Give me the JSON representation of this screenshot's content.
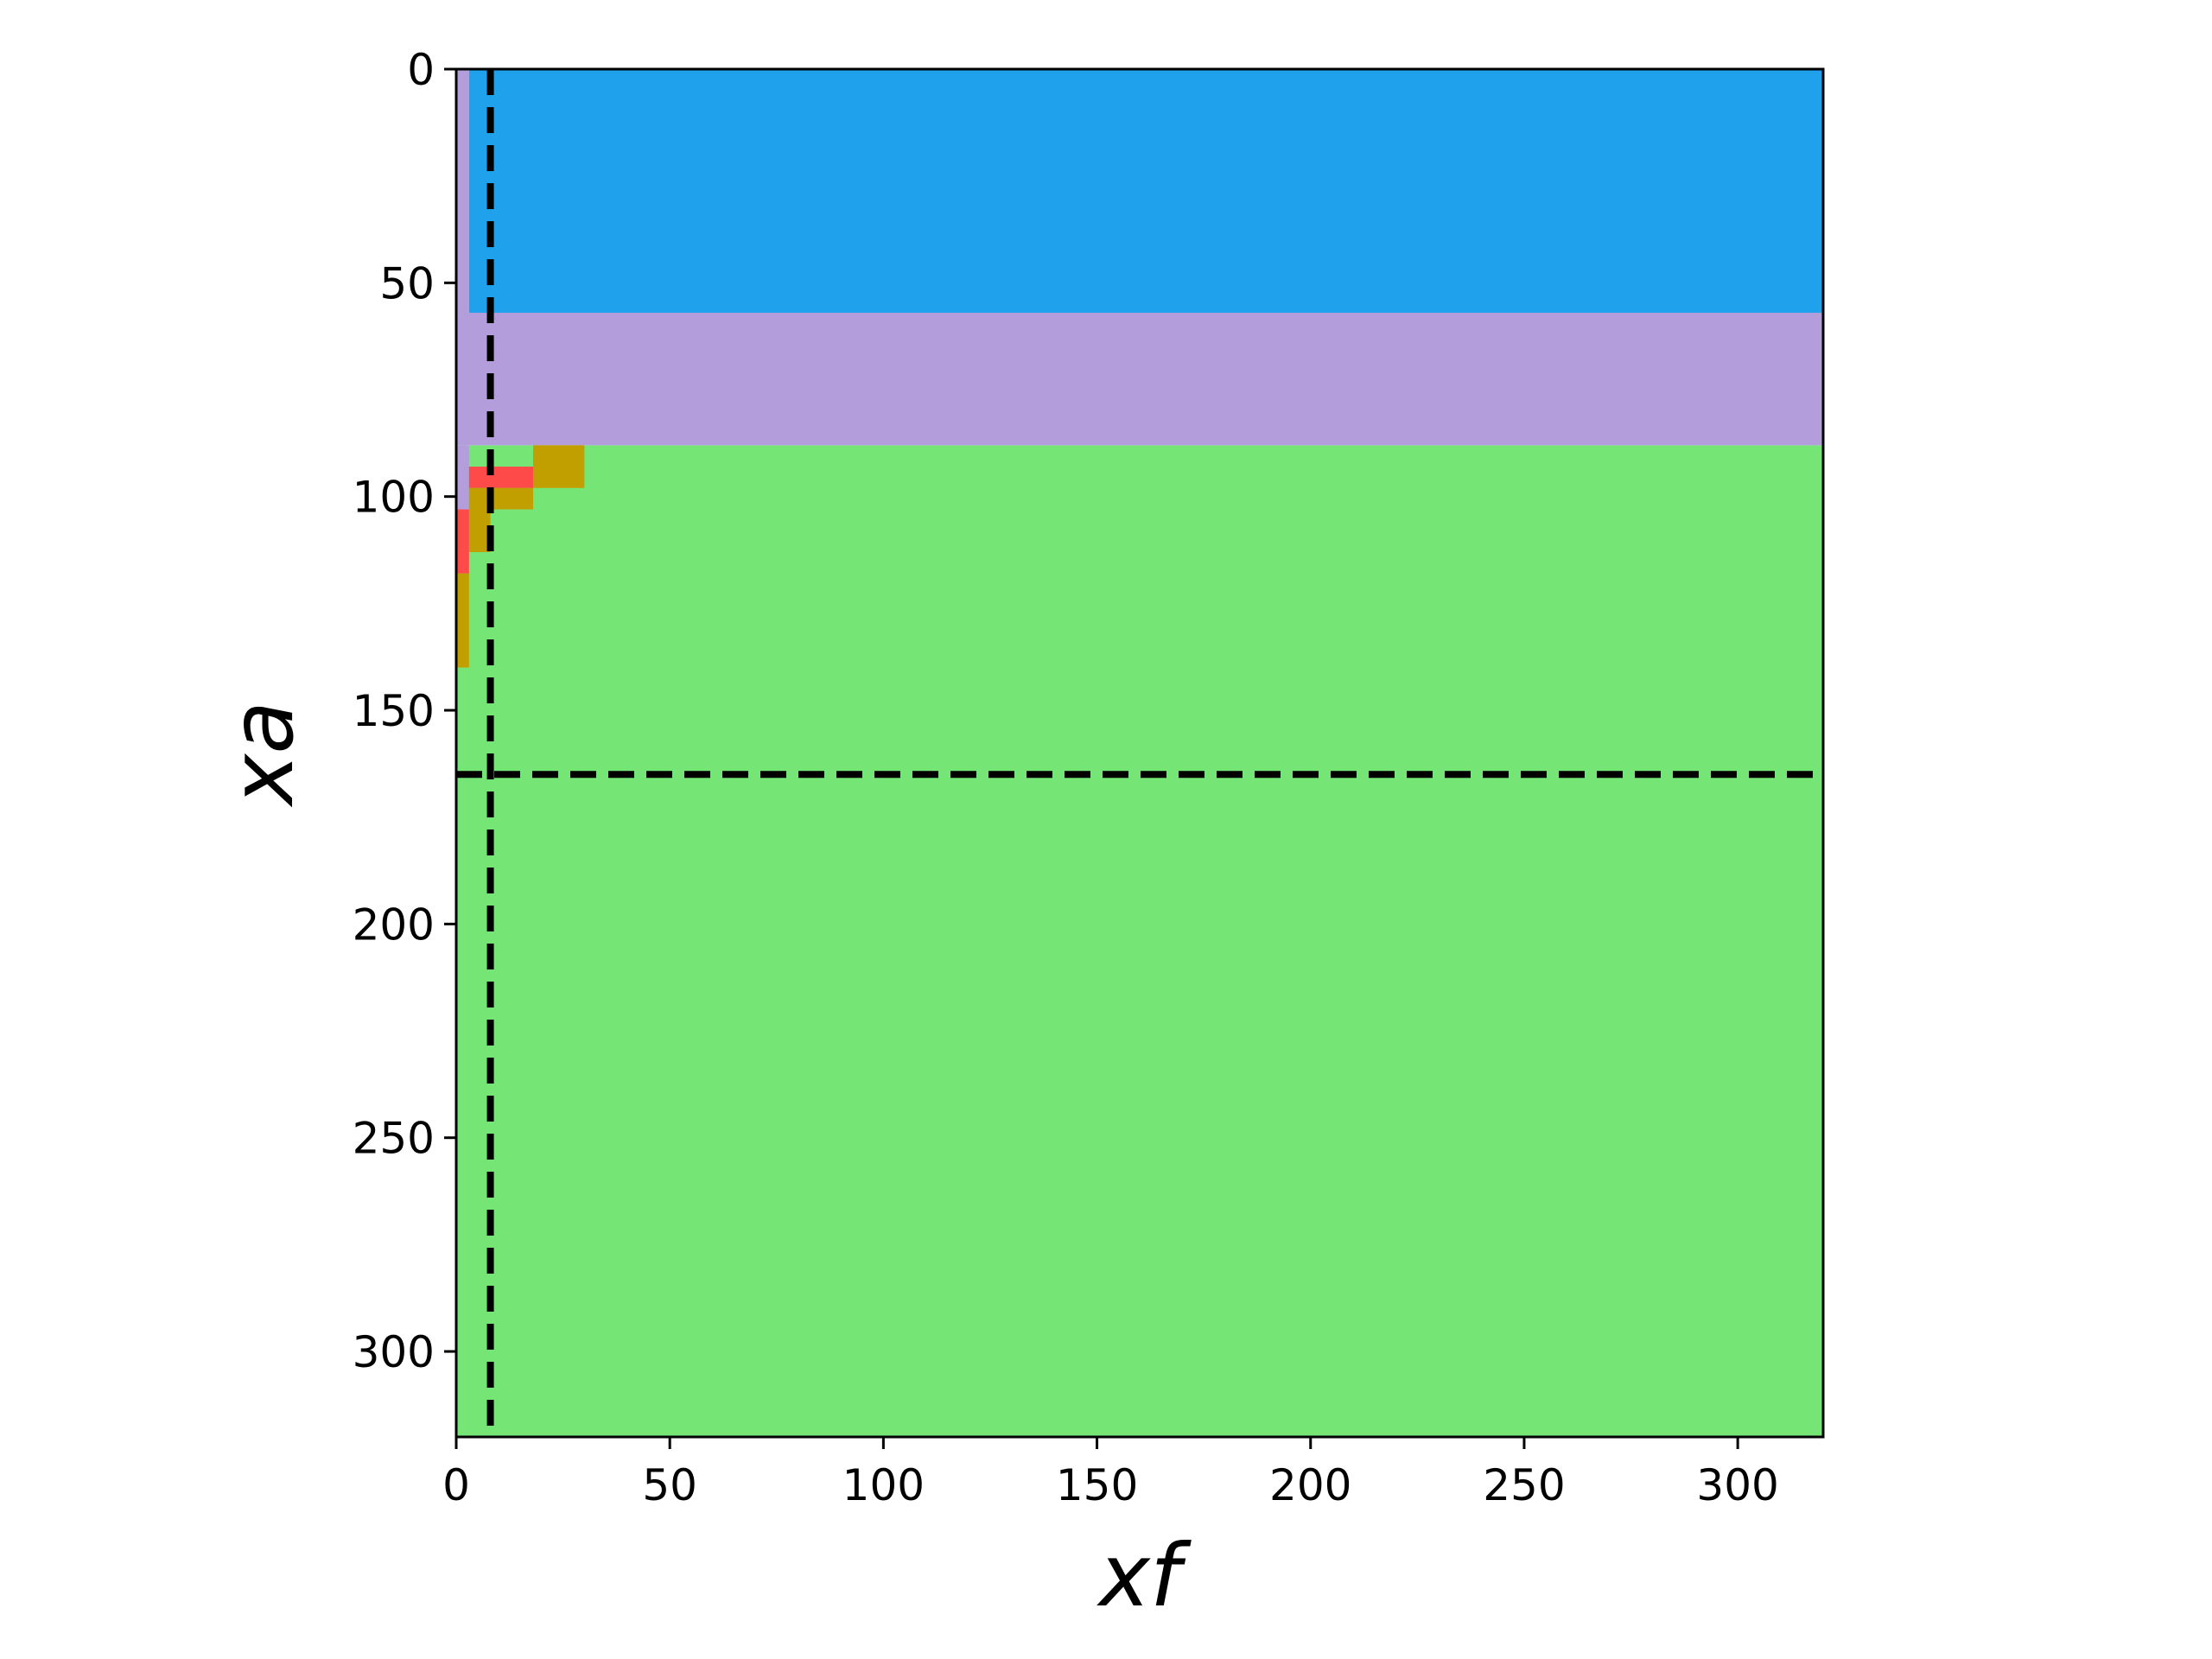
{
  "chart_data": {
    "type": "heatmap",
    "title": "",
    "xlabel": "xf",
    "ylabel": "xa",
    "xlim": [
      0,
      320
    ],
    "ylim": [
      320,
      0
    ],
    "y_axis_inverted": true,
    "grid": false,
    "legend": "none",
    "x_ticks": [
      "0",
      "50",
      "100",
      "150",
      "200",
      "250",
      "300"
    ],
    "y_ticks": [
      "0",
      "50",
      "100",
      "150",
      "200",
      "250",
      "300"
    ],
    "colors": {
      "blue": "#1fa1eb",
      "purple": "#b39ddb",
      "green": "#75e675",
      "red": "#ff4a4a",
      "olive": "#c29f00"
    },
    "regions": [
      {
        "color": "green",
        "x": [
          0,
          320
        ],
        "y": [
          88,
          320
        ]
      },
      {
        "color": "purple",
        "x": [
          0,
          320
        ],
        "y": [
          57,
          88
        ]
      },
      {
        "color": "purple",
        "x": [
          0,
          3
        ],
        "y": [
          0,
          57
        ]
      },
      {
        "color": "blue",
        "x": [
          3,
          320
        ],
        "y": [
          0,
          57
        ]
      },
      {
        "color": "purple",
        "x": [
          0,
          3
        ],
        "y": [
          88,
          103
        ]
      },
      {
        "color": "olive",
        "x": [
          18,
          30
        ],
        "y": [
          88,
          98
        ]
      },
      {
        "color": "red",
        "x": [
          3,
          18
        ],
        "y": [
          93,
          98
        ]
      },
      {
        "color": "olive",
        "x": [
          3,
          18
        ],
        "y": [
          98,
          103
        ]
      },
      {
        "color": "olive",
        "x": [
          3,
          8
        ],
        "y": [
          103,
          113
        ]
      },
      {
        "color": "red",
        "x": [
          0,
          3
        ],
        "y": [
          103,
          118
        ]
      },
      {
        "color": "olive",
        "x": [
          0,
          3
        ],
        "y": [
          118,
          140
        ]
      }
    ],
    "reference_lines": [
      {
        "orientation": "vertical",
        "value": 8,
        "style": "dashed",
        "color": "#000000"
      },
      {
        "orientation": "horizontal",
        "value": 165,
        "style": "dashed",
        "color": "#000000"
      }
    ]
  }
}
